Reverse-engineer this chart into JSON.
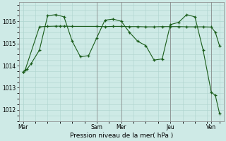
{
  "background_color": "#ceeae6",
  "grid_color": "#aed4ce",
  "line_color": "#1a5c1a",
  "xlabel": "Pression niveau de la mer( hPa )",
  "ylim": [
    1011.5,
    1016.85
  ],
  "yticks": [
    1012,
    1013,
    1014,
    1015,
    1016
  ],
  "x_day_labels": [
    "Mar",
    "Sam",
    "Mer",
    "Jeu",
    "Ven"
  ],
  "x_day_positions": [
    0,
    18,
    24,
    36,
    46
  ],
  "series1_x": [
    0,
    0.5,
    4,
    6,
    8,
    9,
    10,
    12,
    18,
    20,
    22,
    24,
    26,
    28,
    30,
    32,
    34,
    36,
    38,
    40,
    42,
    44,
    46,
    47,
    48
  ],
  "series1_y": [
    1013.7,
    1013.8,
    1015.75,
    1015.77,
    1015.78,
    1015.78,
    1015.78,
    1015.77,
    1015.77,
    1015.76,
    1015.77,
    1015.77,
    1015.76,
    1015.76,
    1015.75,
    1015.75,
    1015.76,
    1015.76,
    1015.76,
    1015.75,
    1015.75,
    1015.75,
    1015.74,
    1015.5,
    1014.9
  ],
  "series2_x": [
    0,
    1,
    2,
    4,
    6,
    8,
    10,
    12,
    14,
    16,
    18,
    20,
    22,
    24,
    26,
    28,
    30,
    32,
    34,
    36,
    38,
    40,
    42,
    44,
    46,
    47,
    48
  ],
  "series2_y": [
    1013.7,
    1013.85,
    1014.1,
    1014.7,
    1016.25,
    1016.3,
    1016.2,
    1015.1,
    1014.4,
    1014.45,
    1015.25,
    1016.05,
    1016.1,
    1016.0,
    1015.5,
    1015.1,
    1014.9,
    1014.25,
    1014.3,
    1015.85,
    1015.95,
    1016.3,
    1016.2,
    1014.7,
    1012.8,
    1012.65,
    1011.85
  ],
  "vline_positions": [
    18,
    24,
    36,
    46
  ],
  "vline_color": "#888888",
  "xlim": [
    -1,
    49
  ]
}
